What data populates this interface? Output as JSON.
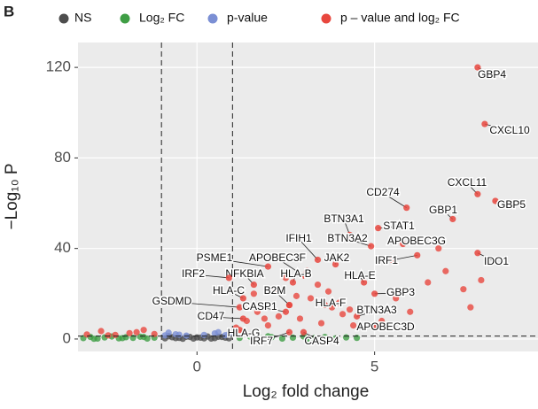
{
  "chart_data": {
    "type": "scatter",
    "panel_label": "B",
    "xlabel": "Log₂ fold change",
    "ylabel": "−Log₁₀ P",
    "xlim": [
      -3.35,
      9.6
    ],
    "ylim": [
      -5.5,
      131
    ],
    "xticks": [
      0,
      5
    ],
    "yticks": [
      0,
      40,
      80,
      120
    ],
    "grid": true,
    "legend": "top",
    "vlines": [
      -1,
      1
    ],
    "hline": 1.3,
    "series": [
      {
        "name": "NS",
        "color": "#4d4d4d",
        "x": [
          -0.9,
          -0.7,
          -0.5,
          -0.3,
          -0.1,
          0.1,
          0.3,
          0.5,
          0.7,
          0.9,
          -0.8,
          -0.4,
          0,
          0.4,
          0.8,
          -0.6,
          -0.2,
          0.2,
          0.6
        ],
        "y": [
          0.3,
          0.8,
          0.5,
          1.0,
          0.2,
          0.6,
          1.1,
          0.4,
          0.9,
          0.3,
          1.2,
          0.1,
          0.7,
          0.2,
          0.6,
          0.4,
          0.9,
          0.3,
          1.0
        ]
      },
      {
        "name": "Log₂ FC",
        "color": "#3f9e45",
        "x": [
          -3.2,
          -3.0,
          -2.8,
          -2.6,
          -2.4,
          -2.2,
          -2.0,
          -1.8,
          -1.6,
          -1.4,
          -1.2,
          -2.9,
          -2.1,
          -1.5,
          1.2,
          1.5,
          1.8,
          2.1,
          2.4,
          2.7,
          3.0,
          3.3,
          3.6,
          3.9,
          4.2,
          4.5,
          2.0,
          3.1
        ],
        "y": [
          0.4,
          0.9,
          0.2,
          0.7,
          1.1,
          0.3,
          0.8,
          0.5,
          1.0,
          0.2,
          0.6,
          0.1,
          0.4,
          0.9,
          0.5,
          1.0,
          0.3,
          0.8,
          0.2,
          0.6,
          1.1,
          0.4,
          0.9,
          0.3,
          0.7,
          0.5,
          1.2,
          0.1
        ]
      },
      {
        "name": "p-value",
        "color": "#7b8fd4",
        "x": [
          -0.9,
          -0.6,
          -0.3,
          0.2,
          0.5,
          0.8,
          -0.8,
          0.9,
          -0.5,
          0.6
        ],
        "y": [
          1.6,
          2.1,
          1.5,
          1.8,
          2.5,
          1.7,
          2.8,
          2.2,
          1.9,
          3.0
        ]
      },
      {
        "name": "p – value and log₂ FC",
        "color": "#e8473e",
        "x": [
          -3.1,
          -2.7,
          -2.3,
          -1.9,
          -1.5,
          -1.2,
          -2.5,
          -1.7,
          1.1,
          1.4,
          1.7,
          2.0,
          2.3,
          2.6,
          2.9,
          3.2,
          3.5,
          3.8,
          4.1,
          4.4,
          1.6,
          2.2,
          2.8,
          3.4,
          4.0,
          1.9,
          2.5,
          3.1,
          3.7,
          4.3,
          5.2,
          5.6,
          6.0,
          6.5,
          7.0,
          7.5,
          6.8,
          7.7,
          8.0,
          5.5
        ],
        "y": [
          2.0,
          3.5,
          1.8,
          2.6,
          4.0,
          2.2,
          1.6,
          3.0,
          5,
          8,
          12,
          6,
          10,
          15,
          9,
          18,
          7,
          14,
          11,
          6,
          20,
          22,
          19,
          24,
          16,
          9,
          27,
          30,
          21,
          13,
          8,
          18,
          12,
          25,
          30,
          22,
          40,
          14,
          26,
          35
        ]
      }
    ],
    "annotations": [
      {
        "text": "GBP4",
        "x": 7.9,
        "y": 120
      },
      {
        "text": "CXCL10",
        "x": 8.1,
        "y": 95
      },
      {
        "text": "CXCL11",
        "x": 7.9,
        "y": 64
      },
      {
        "text": "GBP5",
        "x": 8.4,
        "y": 61
      },
      {
        "text": "GBP1",
        "x": 7.2,
        "y": 53
      },
      {
        "text": "IDO1",
        "x": 7.9,
        "y": 38
      },
      {
        "text": "CD274",
        "x": 5.9,
        "y": 58
      },
      {
        "text": "STAT1",
        "x": 5.1,
        "y": 49
      },
      {
        "text": "BTN3A1",
        "x": 4.3,
        "y": 46
      },
      {
        "text": "BTN3A2",
        "x": 4.9,
        "y": 41
      },
      {
        "text": "APOBEC3G",
        "x": 5.8,
        "y": 42
      },
      {
        "text": "IRF1",
        "x": 6.2,
        "y": 37
      },
      {
        "text": "JAK2",
        "x": 3.9,
        "y": 33
      },
      {
        "text": "IFIH1",
        "x": 3.4,
        "y": 35
      },
      {
        "text": "HLA-E",
        "x": 4.7,
        "y": 25
      },
      {
        "text": "APOBEC3F",
        "x": 3.0,
        "y": 28
      },
      {
        "text": "PSME1",
        "x": 2.0,
        "y": 32
      },
      {
        "text": "HLA-B",
        "x": 2.7,
        "y": 25
      },
      {
        "text": "NFKBIA",
        "x": 1.6,
        "y": 24
      },
      {
        "text": "IRF2",
        "x": 0.9,
        "y": 27
      },
      {
        "text": "GBP3",
        "x": 5.0,
        "y": 20
      },
      {
        "text": "HLA-C",
        "x": 1.3,
        "y": 18
      },
      {
        "text": "B2M",
        "x": 2.6,
        "y": 15
      },
      {
        "text": "HLA-F",
        "x": 3.6,
        "y": 15
      },
      {
        "text": "GSDMD",
        "x": 1.2,
        "y": 14
      },
      {
        "text": "CASP1",
        "x": 2.5,
        "y": 12
      },
      {
        "text": "BTN3A3",
        "x": 4.5,
        "y": 10
      },
      {
        "text": "CD47",
        "x": 1.3,
        "y": 9
      },
      {
        "text": "APOBEC3D",
        "x": 5.0,
        "y": 6
      },
      {
        "text": "HLA-G",
        "x": 1.2,
        "y": 4
      },
      {
        "text": "IRF7",
        "x": 2.6,
        "y": 3
      },
      {
        "text": "CASP4",
        "x": 3.0,
        "y": 3
      }
    ]
  }
}
